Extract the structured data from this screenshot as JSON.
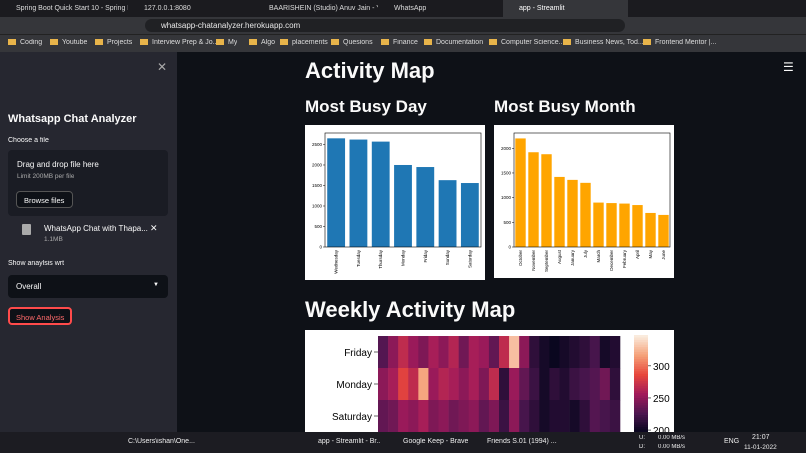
{
  "browser": {
    "tabs": [
      "Spring Boot Quick Start 10 - Spring Bo",
      "127.0.0.1:8080",
      "BAARISHEIN (Studio) Anuv Jain - Y",
      "WhatsApp",
      "app - Streamlit"
    ],
    "url": "whatsapp-chatanalyzer.herokuapp.com",
    "bookmarks": [
      "Coding",
      "Youtube",
      "Projects",
      "Interview Prep & Jo...",
      "My",
      "Algo",
      "placements",
      "Quesions",
      "Finance",
      "Documentation",
      "Computer Science...",
      "Business News, Tod...",
      "Frontend Mentor |..."
    ]
  },
  "sidebar": {
    "title": "Whatsapp Chat Analyzer",
    "upload_label": "Choose a file",
    "drop_text": "Drag and drop file here",
    "limit_text": "Limit 200MB per file",
    "browse_button": "Browse files",
    "file_name": "WhatsApp Chat with Thapa...",
    "file_size": "1.1MB",
    "select_label": "Show anaylsis wrt",
    "select_value": "Overall",
    "button": "Show Analysis"
  },
  "main": {
    "heading": "Activity Map",
    "day_heading": "Most Busy Day",
    "month_heading": "Most Busy Month",
    "weekly_heading": "Weekly Activity Map"
  },
  "chart_data": [
    {
      "type": "bar",
      "categories": [
        "Wednesday",
        "Tuesday",
        "Thursday",
        "Monday",
        "Friday",
        "Sunday",
        "Saturday"
      ],
      "values": [
        2650,
        2620,
        2570,
        2000,
        1950,
        1630,
        1560
      ],
      "color": "#1f77b4",
      "ylim": [
        0,
        2780
      ],
      "yticks": [
        0,
        500,
        1000,
        1500,
        2000,
        2500
      ]
    },
    {
      "type": "bar",
      "categories": [
        "October",
        "November",
        "September",
        "August",
        "January",
        "July",
        "March",
        "December",
        "February",
        "April",
        "May",
        "June"
      ],
      "values": [
        2200,
        1920,
        1880,
        1420,
        1360,
        1300,
        900,
        890,
        880,
        850,
        690,
        650
      ],
      "color": "#ffa500",
      "ylim": [
        0,
        2310
      ],
      "yticks": [
        0,
        500,
        1000,
        1500,
        2000
      ]
    },
    {
      "type": "heatmap",
      "rows": [
        "Friday",
        "Monday",
        "Saturday"
      ],
      "values": [
        [
          230,
          250,
          270,
          255,
          245,
          260,
          250,
          265,
          240,
          260,
          255,
          235,
          270,
          330,
          250,
          215,
          205,
          200,
          205,
          210,
          215,
          225,
          205,
          210
        ],
        [
          250,
          260,
          285,
          270,
          320,
          255,
          265,
          260,
          250,
          260,
          245,
          270,
          215,
          255,
          235,
          220,
          205,
          215,
          210,
          220,
          225,
          230,
          240,
          215
        ],
        [
          235,
          240,
          255,
          250,
          260,
          245,
          250,
          240,
          245,
          250,
          235,
          245,
          220,
          250,
          225,
          215,
          205,
          210,
          210,
          205,
          215,
          230,
          225,
          220
        ]
      ],
      "clim": [
        197,
        348
      ],
      "cticks": [
        200,
        250,
        300
      ]
    }
  ],
  "taskbar": {
    "items": [
      "C:\\Users\\ishan\\One...",
      "app - Streamlit - Br...",
      "Google Keep - Brave",
      "Friends S.01 (1994) ..."
    ],
    "net_up_label": "U:",
    "net_down_label": "D:",
    "net_up": "0.00 MB/s",
    "net_down": "0.00 MB/s",
    "lang": "ENG",
    "time": "21:07",
    "date": "11-01-2022"
  }
}
